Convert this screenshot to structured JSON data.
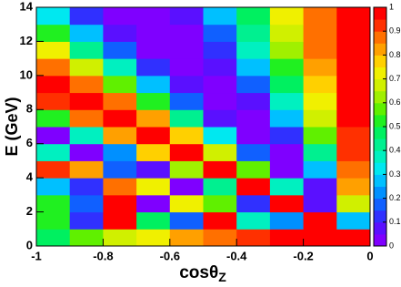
{
  "chart_data": {
    "type": "heatmap",
    "x_label": "cosθ",
    "x_label_sub": "Z",
    "y_label": "E (GeV)",
    "x": [
      -0.95,
      -0.85,
      -0.75,
      -0.65,
      -0.55,
      -0.45,
      -0.35,
      -0.25,
      -0.15,
      -0.05
    ],
    "y": [
      0.5,
      1.5,
      2.5,
      3.5,
      4.5,
      5.5,
      6.5,
      7.5,
      8.5,
      9.5,
      10.5,
      11.5,
      12.5,
      13.5
    ],
    "z": [
      [
        0.49,
        0.57,
        0.66,
        0.74,
        0.8,
        0.87,
        0.92,
        0.96,
        0.99,
        1.0
      ],
      [
        0.53,
        0.1,
        0.96,
        0.45,
        0.16,
        0.99,
        0.37,
        0.22,
        1.0,
        0.27
      ],
      [
        0.5,
        0.19,
        0.98,
        0.04,
        0.74,
        0.58,
        0.13,
        1.0,
        0.08,
        0.66
      ],
      [
        0.28,
        0.1,
        0.88,
        0.74,
        0.02,
        0.44,
        1.0,
        0.36,
        0.06,
        0.82
      ],
      [
        0.93,
        0.83,
        0.19,
        0.05,
        0.63,
        1.0,
        0.55,
        0.02,
        0.27,
        0.89
      ],
      [
        0.35,
        0.01,
        0.21,
        0.75,
        1.0,
        0.68,
        0.15,
        0.03,
        0.43,
        0.92
      ],
      [
        0.03,
        0.38,
        0.82,
        1.0,
        0.75,
        0.3,
        0.01,
        0.14,
        0.56,
        0.94
      ],
      [
        0.5,
        0.87,
        1.0,
        0.81,
        0.41,
        0.08,
        0.01,
        0.27,
        0.66,
        0.96
      ],
      [
        0.9,
        1.0,
        0.85,
        0.51,
        0.18,
        0.0,
        0.08,
        0.38,
        0.73,
        0.97
      ],
      [
        1.0,
        0.87,
        0.59,
        0.27,
        0.05,
        0.01,
        0.17,
        0.47,
        0.78,
        0.97
      ],
      [
        0.89,
        0.65,
        0.36,
        0.12,
        0.0,
        0.06,
        0.27,
        0.54,
        0.82,
        0.98
      ],
      [
        0.7,
        0.43,
        0.19,
        0.03,
        0.01,
        0.12,
        0.35,
        0.61,
        0.85,
        0.98
      ],
      [
        0.5,
        0.26,
        0.08,
        0.0,
        0.04,
        0.19,
        0.41,
        0.66,
        0.87,
        0.99
      ],
      [
        0.33,
        0.14,
        0.02,
        0.01,
        0.09,
        0.27,
        0.49,
        0.71,
        0.89,
        0.99
      ]
    ],
    "xlim": [
      -1,
      0
    ],
    "ylim": [
      0,
      14
    ],
    "zlim": [
      0,
      1
    ],
    "xticks": [
      -1,
      -0.8,
      -0.6,
      -0.4,
      -0.2,
      0
    ],
    "yticks": [
      0,
      2,
      4,
      6,
      8,
      10,
      12,
      14
    ],
    "zticks": [
      0,
      0.1,
      0.2,
      0.3,
      0.4,
      0.5,
      0.6,
      0.7,
      0.8,
      0.9,
      1
    ],
    "colors": [
      "#7f00ff",
      "#5a10ff",
      "#3030ff",
      "#1060ff",
      "#0090ff",
      "#00c0ff",
      "#00e8f0",
      "#00f0c0",
      "#00f090",
      "#00f060",
      "#20f020",
      "#60f000",
      "#a0f000",
      "#d0f000",
      "#f0f000",
      "#ffd000",
      "#ffa000",
      "#ff7000",
      "#ff3000",
      "#ff0000"
    ]
  }
}
